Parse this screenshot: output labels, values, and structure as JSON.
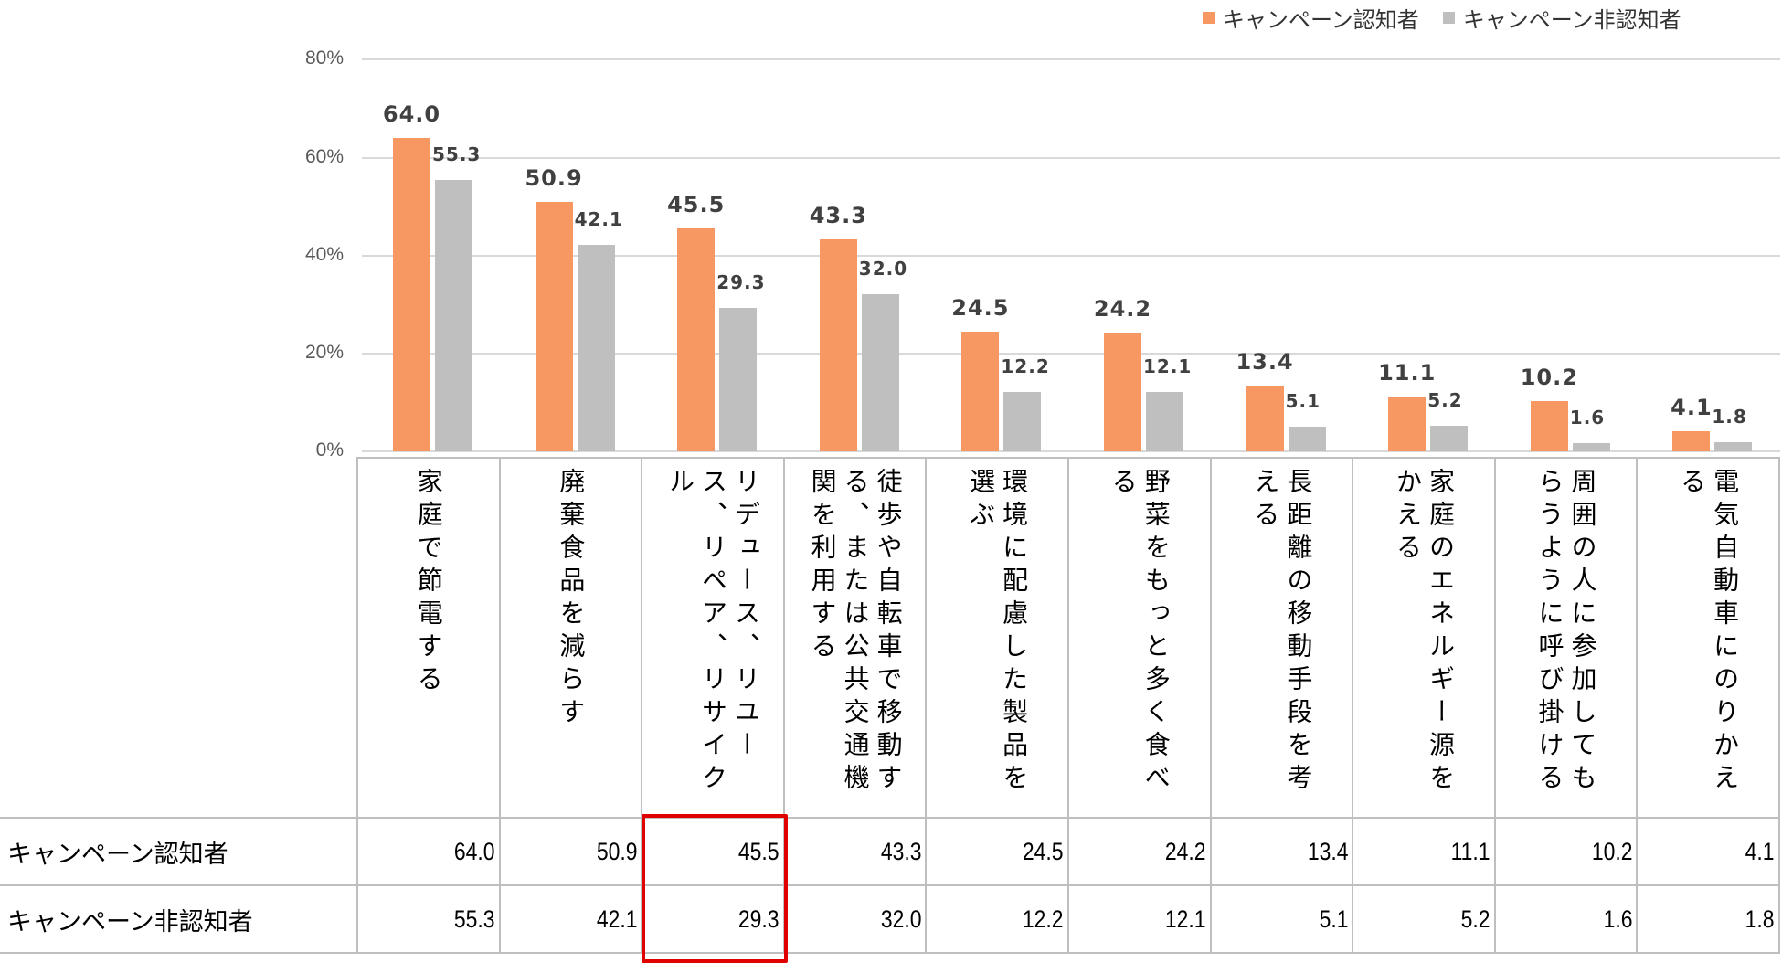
{
  "legend": [
    {
      "label": "キャンペーン認知者",
      "color": "#f79862"
    },
    {
      "label": "キャンペーン非認知者",
      "color": "#bfbfbf"
    }
  ],
  "y_axis": {
    "ticks": [
      "80%",
      "60%",
      "40%",
      "20%",
      "0%"
    ]
  },
  "categories": [
    "家庭で節電する",
    "廃棄食品を減らす",
    "リデュース、リユース、リペア、リサイクル",
    "徒歩や自転車で移動する、または公共交通機関を利用する",
    "環境に配慮した製品を選ぶ",
    "野菜をもっと多く食べる",
    "長距離の移動手段を考える",
    "家庭のエネルギー源をかえる",
    "周囲の人に参加してもらうように呼び掛ける",
    "電気自動車にのりかえる"
  ],
  "table": {
    "rows": [
      {
        "label": "キャンペーン認知者",
        "values": [
          "64.0",
          "50.9",
          "45.5",
          "43.3",
          "24.5",
          "24.2",
          "13.4",
          "11.1",
          "10.2",
          "4.1"
        ]
      },
      {
        "label": "キャンペーン非認知者",
        "values": [
          "55.3",
          "42.1",
          "29.3",
          "32.0",
          "12.2",
          "12.1",
          "5.1",
          "5.2",
          "1.6",
          "1.8"
        ]
      }
    ],
    "highlighted_column": 2,
    "highlight_color": "#e00000"
  },
  "chart_data": {
    "type": "bar",
    "title": "",
    "xlabel": "",
    "ylabel": "",
    "ylim": [
      0,
      80
    ],
    "y_ticks": [
      "0%",
      "20%",
      "40%",
      "60%",
      "80%"
    ],
    "grid": true,
    "legend_position": "top-right",
    "categories": [
      "家庭で節電する",
      "廃棄食品を減らす",
      "リデュース、リユース、リペア、リサイクル",
      "徒歩や自転車で移動する、または公共交通機関を利用する",
      "環境に配慮した製品を選ぶ",
      "野菜をもっと多く食べる",
      "長距離の移動手段を考える",
      "家庭のエネルギー源をかえる",
      "周囲の人に参加してもらうように呼び掛ける",
      "電気自動車にのりかえる"
    ],
    "series": [
      {
        "name": "キャンペーン認知者",
        "color": "#f79862",
        "values": [
          64.0,
          50.9,
          45.5,
          43.3,
          24.5,
          24.2,
          13.4,
          11.1,
          10.2,
          4.1
        ]
      },
      {
        "name": "キャンペーン非認知者",
        "color": "#bfbfbf",
        "values": [
          55.3,
          42.1,
          29.3,
          32.0,
          12.2,
          12.1,
          5.1,
          5.2,
          1.6,
          1.8
        ]
      }
    ]
  }
}
